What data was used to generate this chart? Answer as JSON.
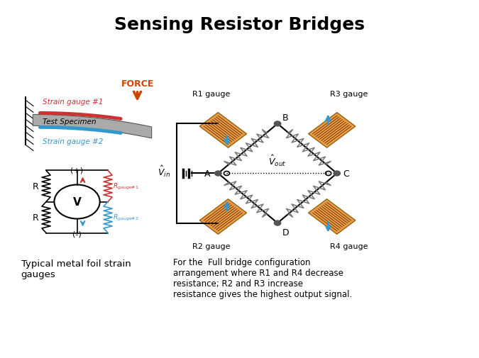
{
  "title": "Sensing Resistor Bridges",
  "title_fontsize": 18,
  "title_fontweight": "bold",
  "bg_color": "#ffffff",
  "left_caption": "Typical metal foil strain\ngauges",
  "right_caption": "For the  Full bridge configuration\narrangement where R1 and R4 decrease\nresistance; R2 and R3 increase\nresistance gives the highest output signal.",
  "gauge_color": "#D2691E",
  "gauge_fill": "#E8943A",
  "strain_gauge1_color": "#CC3333",
  "strain_gauge2_color": "#3399CC",
  "force_color": "#CC4400",
  "specimen_color": "#888888",
  "wire_color": "#000000",
  "rgauge1_label": "$R_{gauge1}$",
  "rgauge2_label": "$R_{gauge2}$"
}
